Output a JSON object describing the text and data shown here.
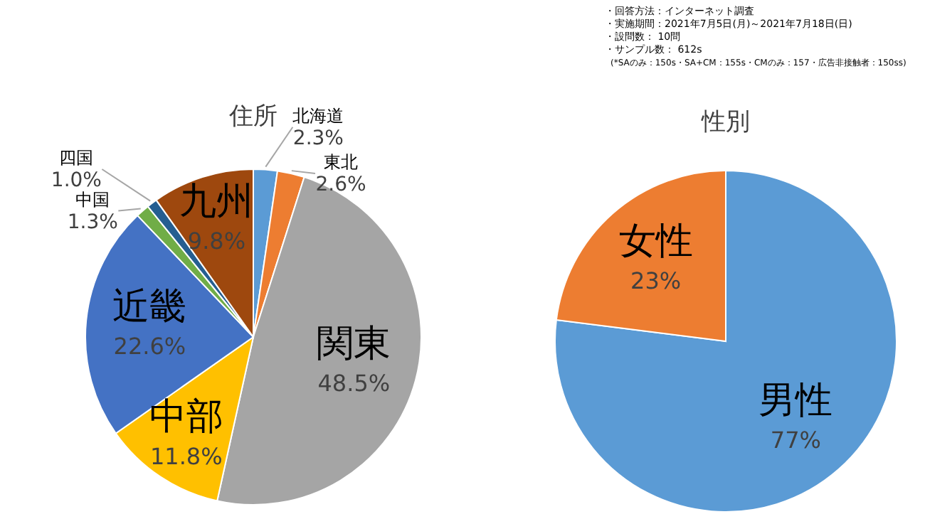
{
  "chart_data": [
    {
      "type": "pie",
      "title": "住所",
      "categories": [
        "北海道",
        "東北",
        "関東",
        "中部",
        "近畿",
        "中国",
        "四国",
        "九州"
      ],
      "values": [
        2.3,
        2.6,
        48.5,
        11.8,
        22.6,
        1.3,
        1.0,
        9.8
      ],
      "value_labels": [
        "2.3%",
        "2.6%",
        "48.5%",
        "11.8%",
        "22.6%",
        "1.3%",
        "1.0%",
        "9.8%"
      ],
      "colors": [
        "#5b9bd5",
        "#ed7d31",
        "#a5a5a5",
        "#ffc000",
        "#4472c4",
        "#70ad47",
        "#255e91",
        "#9e480e"
      ],
      "legend": false
    },
    {
      "type": "pie",
      "title": "性別",
      "categories": [
        "男性",
        "女性"
      ],
      "values": [
        77,
        23
      ],
      "value_labels": [
        "77%",
        "23%"
      ],
      "colors": [
        "#5b9bd5",
        "#ed7d31"
      ],
      "legend": false,
      "annotations": [
        "・回答方法：インターネット調査",
        "・実施期間：2021年7月5日(月)～2021年7月18日(日)",
        "・設問数： 10問",
        "・サンプル数： 612s",
        "(*SAのみ：150s・SA+CM：155s・CMのみ：157・広告非接触者：150ss)"
      ]
    }
  ]
}
